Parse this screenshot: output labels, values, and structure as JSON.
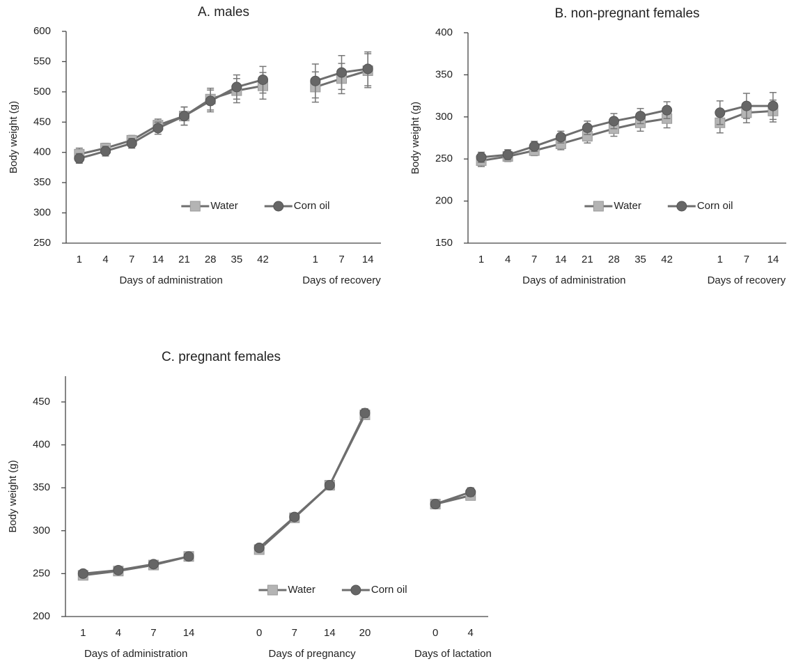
{
  "chart_data": [
    {
      "type": "line",
      "title": "A. males",
      "ylabel": "Body weight (g)",
      "categories": [
        "1",
        "4",
        "7",
        "14",
        "21",
        "28",
        "35",
        "42",
        null,
        "1",
        "7",
        "14"
      ],
      "xlabels": [
        "Days of administration",
        "Days of recovery"
      ],
      "ylim": [
        250,
        600
      ],
      "yticks": [
        250,
        300,
        350,
        400,
        450,
        500,
        550,
        600
      ],
      "line_color": "#6e6e6e",
      "legend": "lower right",
      "series": [
        {
          "name": "Water",
          "marker": "square",
          "color": "#b4b4b4",
          "values": [
            397,
            407,
            420,
            445,
            460,
            488,
            502,
            510,
            null,
            508,
            522,
            535
          ],
          "errors": [
            10,
            8,
            8,
            10,
            15,
            18,
            20,
            22,
            null,
            25,
            25,
            28
          ]
        },
        {
          "name": "Corn oil",
          "marker": "circle",
          "color": "#666666",
          "values": [
            390,
            402,
            415,
            440,
            460,
            485,
            508,
            520,
            null,
            518,
            532,
            538
          ],
          "errors": [
            8,
            8,
            8,
            10,
            15,
            18,
            20,
            22,
            null,
            28,
            28,
            28
          ]
        }
      ]
    },
    {
      "type": "line",
      "title": "B. non-pregnant females",
      "ylabel": "Body weight (g)",
      "categories": [
        "1",
        "4",
        "7",
        "14",
        "21",
        "28",
        "35",
        "42",
        null,
        "1",
        "7",
        "14"
      ],
      "xlabels": [
        "Days of administration",
        "Days of recovery"
      ],
      "ylim": [
        150,
        400
      ],
      "yticks": [
        150,
        200,
        250,
        300,
        350,
        400
      ],
      "line_color": "#6e6e6e",
      "legend": "lower right",
      "series": [
        {
          "name": "Water",
          "marker": "square",
          "color": "#b4b4b4",
          "values": [
            248,
            253,
            260,
            268,
            277,
            286,
            293,
            298,
            null,
            293,
            305,
            307
          ],
          "errors": [
            7,
            6,
            6,
            7,
            8,
            9,
            10,
            11,
            null,
            12,
            12,
            13
          ]
        },
        {
          "name": "Corn oil",
          "marker": "circle",
          "color": "#666666",
          "values": [
            252,
            255,
            265,
            276,
            287,
            295,
            301,
            308,
            null,
            305,
            313,
            313
          ],
          "errors": [
            6,
            6,
            6,
            7,
            8,
            9,
            9,
            10,
            null,
            14,
            15,
            16
          ]
        }
      ]
    },
    {
      "type": "line",
      "title": "C. pregnant females",
      "ylabel": "Body weight (g)",
      "categories": [
        "1",
        "4",
        "7",
        "14",
        null,
        "0",
        "7",
        "14",
        "20",
        null,
        "0",
        "4"
      ],
      "xlabels": [
        "Days of administration",
        "Days of pregnancy",
        "Days of lactation"
      ],
      "ylim": [
        200,
        480
      ],
      "yticks": [
        200,
        250,
        300,
        350,
        400,
        450
      ],
      "line_color": "#6e6e6e",
      "legend": "lower center",
      "series": [
        {
          "name": "Water",
          "marker": "square",
          "color": "#b4b4b4",
          "values": [
            248,
            253,
            260,
            270,
            null,
            278,
            315,
            353,
            435,
            null,
            331,
            341
          ],
          "errors": [
            4,
            4,
            4,
            4,
            null,
            4,
            4,
            4,
            5,
            null,
            4,
            5
          ]
        },
        {
          "name": "Corn oil",
          "marker": "circle",
          "color": "#666666",
          "values": [
            250,
            254,
            261,
            270,
            null,
            280,
            316,
            353,
            437,
            null,
            331,
            345
          ],
          "errors": [
            4,
            4,
            4,
            4,
            null,
            4,
            4,
            4,
            5,
            null,
            4,
            5
          ]
        }
      ]
    }
  ]
}
